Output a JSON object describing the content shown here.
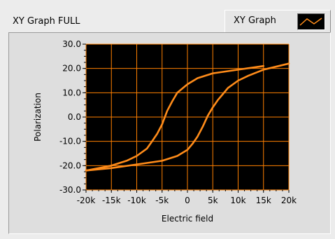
{
  "graph": {
    "title": "XY Graph FULL",
    "legend_label": "XY Graph"
  },
  "colors": {
    "plot_bg": "#000000",
    "grid": "#ff8000",
    "trace": "#ff8c1a",
    "panel": "#ececec"
  },
  "chart_data": {
    "type": "line",
    "xlabel": "Electric field",
    "ylabel": "Polarization",
    "xlim": [
      -20000,
      20000
    ],
    "ylim": [
      -30,
      30
    ],
    "xticks": [
      -20000,
      -15000,
      -10000,
      -5000,
      0,
      5000,
      10000,
      15000,
      20000
    ],
    "xtick_labels": [
      "-20k",
      "-15k",
      "-10k",
      "-5k",
      "0",
      "5k",
      "10k",
      "15k",
      "20k"
    ],
    "yticks": [
      30,
      20,
      10,
      0,
      -10,
      -20,
      -30
    ],
    "ytick_labels": [
      "30.0",
      "20.0",
      "10.0",
      "0.0",
      "-10.0",
      "-20.0",
      "-30.0"
    ],
    "grid": true,
    "series": [
      {
        "name": "XY Graph",
        "x": [
          15000,
          10000,
          5000,
          2000,
          0,
          -2000,
          -3000,
          -4000,
          -5000,
          -6000,
          -7000,
          -8000,
          -10000,
          -12000,
          -15000,
          -20000
        ],
        "y": [
          21.0,
          19.5,
          18.0,
          16.0,
          13.5,
          10.0,
          6.5,
          2.5,
          -3.0,
          -7.0,
          -10.0,
          -13.0,
          -16.0,
          -18.0,
          -20.0,
          -22.0
        ]
      },
      {
        "name": "XY Graph",
        "x": [
          -20000,
          -15000,
          -10000,
          -5000,
          -2000,
          0,
          1000,
          2000,
          3000,
          4000,
          5000,
          6000,
          7000,
          8000,
          10000,
          12000,
          15000,
          20000
        ],
        "y": [
          -22.0,
          -21.0,
          -19.5,
          -18.0,
          -16.0,
          -13.5,
          -11.0,
          -8.0,
          -4.0,
          0.5,
          4.0,
          7.0,
          9.5,
          12.0,
          15.0,
          17.0,
          19.5,
          22.0
        ]
      }
    ]
  }
}
